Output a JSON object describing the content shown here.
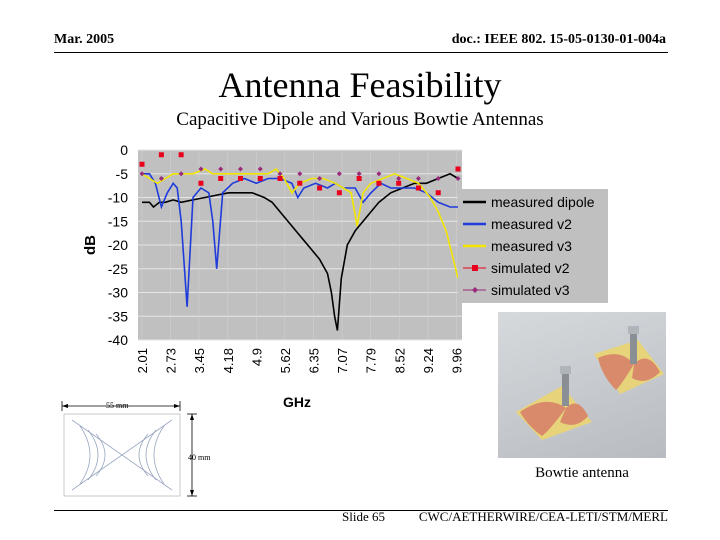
{
  "header": {
    "date": "Mar. 2005",
    "doc_id": "doc.: IEEE 802. 15-05-0130-01-004a"
  },
  "slide": {
    "title": "Antenna Feasibility",
    "subtitle": "Capacitive Dipole and Various Bowtie Antennas"
  },
  "footer": {
    "slide_number": "Slide 65",
    "credit": "CWC/AETHERWIRE/CEA-LETI/STM/MERL"
  },
  "photo": {
    "caption": "Bowtie antenna"
  },
  "diagram": {
    "width_label": "55 mm",
    "height_label": "40 mm"
  },
  "colors": {
    "plot_bg": "#c0c0c0",
    "measured_dipole": "#000000",
    "measured_v2": "#1f3bdb",
    "measured_v3": "#f2e600",
    "simulated_v2": "#e8001c",
    "simulated_v3": "#9a2a7a"
  },
  "chart_data": {
    "type": "line",
    "xlabel": "GHz",
    "ylabel": "dB",
    "ylim": [
      -40,
      0
    ],
    "yticks": [
      "0",
      "-5",
      "-10",
      "-15",
      "-20",
      "-25",
      "-30",
      "-35",
      "-40"
    ],
    "categories": [
      "2.01",
      "2.73",
      "3.45",
      "4.18",
      "4.9",
      "5.62",
      "6.35",
      "7.07",
      "7.79",
      "8.52",
      "9.24",
      "9.96"
    ],
    "legend_position": "right",
    "grid": true,
    "series": [
      {
        "name": "measured dipole",
        "x": [
          2.01,
          2.2,
          2.3,
          2.45,
          2.6,
          2.8,
          3.0,
          3.3,
          3.6,
          3.9,
          4.2,
          4.5,
          4.8,
          5.1,
          5.3,
          5.5,
          5.7,
          5.9,
          6.1,
          6.3,
          6.5,
          6.7,
          6.8,
          6.88,
          6.95,
          7.05,
          7.2,
          7.4,
          7.6,
          7.8,
          8.0,
          8.3,
          8.6,
          8.9,
          9.2,
          9.5,
          9.8,
          10.0
        ],
        "y": [
          -11,
          -11,
          -12,
          -11,
          -11,
          -10.5,
          -11,
          -10.5,
          -10,
          -9.5,
          -9,
          -9,
          -9,
          -10,
          -11,
          -13,
          -15,
          -17,
          -19,
          -21,
          -23,
          -26,
          -30,
          -35,
          -38,
          -27,
          -20,
          -17,
          -15,
          -13,
          -11,
          -9,
          -8,
          -7,
          -7,
          -6,
          -5,
          -6
        ]
      },
      {
        "name": "measured v2",
        "x": [
          2.01,
          2.2,
          2.35,
          2.5,
          2.65,
          2.8,
          2.9,
          3.0,
          3.15,
          3.3,
          3.5,
          3.7,
          3.8,
          3.9,
          4.05,
          4.3,
          4.6,
          4.9,
          5.2,
          5.5,
          5.8,
          5.95,
          6.1,
          6.4,
          6.7,
          6.9,
          7.1,
          7.4,
          7.6,
          7.8,
          8.05,
          8.3,
          8.6,
          8.9,
          9.2,
          9.5,
          9.8,
          10.0
        ],
        "y": [
          -5,
          -5,
          -7,
          -12,
          -9,
          -7,
          -8,
          -15,
          -33,
          -10,
          -8,
          -9,
          -15,
          -25,
          -9,
          -7,
          -6,
          -7,
          -6,
          -6,
          -7,
          -10,
          -8,
          -7,
          -8,
          -7,
          -8,
          -8,
          -11,
          -9,
          -7,
          -8,
          -8,
          -8,
          -9,
          -11,
          -12,
          -12
        ]
      },
      {
        "name": "measured v3",
        "x": [
          2.01,
          2.2,
          2.4,
          2.6,
          2.8,
          3.0,
          3.3,
          3.6,
          3.8,
          4.0,
          4.3,
          4.6,
          4.9,
          5.2,
          5.4,
          5.6,
          5.8,
          6.0,
          6.3,
          6.6,
          6.9,
          7.1,
          7.3,
          7.45,
          7.6,
          7.8,
          8.1,
          8.4,
          8.7,
          9.0,
          9.3,
          9.5,
          9.7,
          9.85,
          10.0
        ],
        "y": [
          -5,
          -6,
          -7,
          -6,
          -5,
          -5,
          -5,
          -4,
          -5,
          -5,
          -5,
          -5,
          -5,
          -5,
          -4,
          -6,
          -9,
          -7,
          -6,
          -6,
          -7,
          -8,
          -9,
          -16,
          -9,
          -7,
          -6,
          -5,
          -6,
          -7,
          -10,
          -13,
          -17,
          -22,
          -27
        ]
      },
      {
        "name": "simulated v2",
        "x": [
          2.01,
          2.5,
          3.0,
          3.5,
          4.0,
          4.5,
          5.0,
          5.5,
          6.0,
          6.5,
          7.0,
          7.5,
          8.0,
          8.5,
          9.0,
          9.5,
          10.0
        ],
        "y": [
          -3,
          -1,
          -1,
          -7,
          -6,
          -6,
          -6,
          -6,
          -7,
          -8,
          -9,
          -6,
          -7,
          -7,
          -8,
          -9,
          -4
        ]
      },
      {
        "name": "simulated v3",
        "x": [
          2.01,
          2.5,
          3.0,
          3.5,
          4.0,
          4.5,
          5.0,
          5.5,
          6.0,
          6.5,
          7.0,
          7.5,
          8.0,
          8.5,
          9.0,
          9.5,
          10.0
        ],
        "y": [
          -5,
          -6,
          -5,
          -4,
          -4,
          -4,
          -4,
          -5,
          -5,
          -6,
          -5,
          -5,
          -5,
          -6,
          -6,
          -6,
          -6
        ]
      }
    ]
  }
}
